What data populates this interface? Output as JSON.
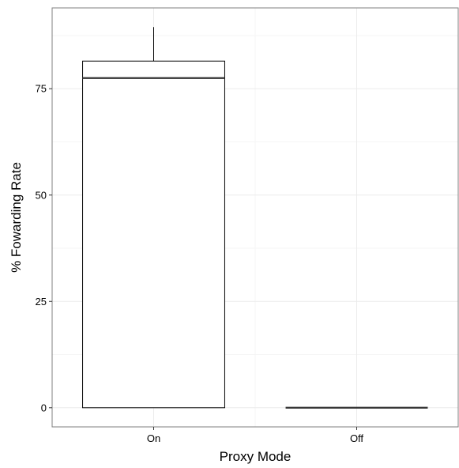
{
  "chart_data": {
    "type": "boxplot",
    "title": "",
    "xlabel": "Proxy Mode",
    "ylabel": "% Fowarding Rate",
    "categories": [
      "On",
      "Off"
    ],
    "boxes": [
      {
        "category": "On",
        "min": 0,
        "q1": 0,
        "median": 77.5,
        "q3": 81.5,
        "max": 89.5
      },
      {
        "category": "Off",
        "min": 0,
        "q1": 0,
        "median": 0,
        "q3": 0,
        "max": 0
      }
    ],
    "ylim": [
      -4.5,
      94
    ],
    "yticks": [
      0,
      25,
      50,
      75
    ],
    "ytick_labels": [
      "0",
      "25",
      "50",
      "75"
    ],
    "grid": true,
    "legend": "none",
    "colors": {
      "box_fill": "#ffffff",
      "box_stroke": "#000000",
      "median": "#333333",
      "grid_major": "#ebebeb",
      "grid_minor": "#f5f5f5",
      "panel_border": "#7f7f7f"
    }
  }
}
